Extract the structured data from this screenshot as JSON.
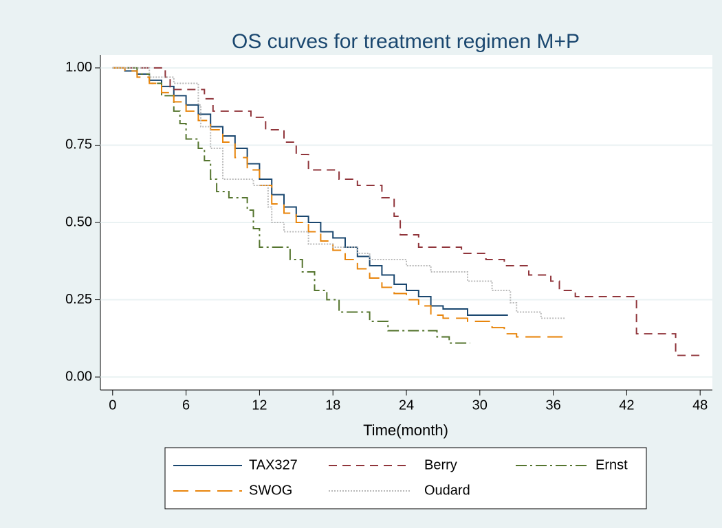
{
  "chart_data": {
    "type": "step",
    "title": "OS curves for treatment regimen M+P",
    "x_label": "Time(month)",
    "xlim": [
      -1,
      49
    ],
    "xticks": [
      0,
      6,
      12,
      18,
      24,
      30,
      36,
      42,
      48
    ],
    "ylim": [
      -0.042,
      1.042
    ],
    "yticks": [
      {
        "value": 0,
        "label": "0.00"
      },
      {
        "value": 0.25,
        "label": "0.25"
      },
      {
        "value": 0.5,
        "label": "0.50"
      },
      {
        "value": 0.75,
        "label": "0.75"
      },
      {
        "value": 1,
        "label": "1.00"
      }
    ],
    "grid": true,
    "series": [
      {
        "name": "TAX327",
        "color": "#1a476f",
        "dash": "none",
        "x": [
          0,
          1,
          2,
          3,
          4,
          5,
          6,
          7,
          8,
          9,
          10,
          11,
          12,
          13,
          14,
          15,
          16,
          17,
          18,
          19,
          20,
          21,
          22,
          23,
          24,
          25,
          26,
          27,
          29,
          32.3
        ],
        "values": [
          1.0,
          0.99,
          0.98,
          0.96,
          0.94,
          0.91,
          0.88,
          0.85,
          0.81,
          0.78,
          0.74,
          0.69,
          0.64,
          0.59,
          0.55,
          0.52,
          0.5,
          0.47,
          0.45,
          0.42,
          0.39,
          0.36,
          0.33,
          0.3,
          0.28,
          0.26,
          0.23,
          0.22,
          0.2,
          0.2
        ]
      },
      {
        "name": "Berry",
        "color": "#90353b",
        "dash": "12 8",
        "x": [
          0,
          4.3,
          4.7,
          7.5,
          8.2,
          11.3,
          12.5,
          14,
          15,
          16,
          18.5,
          20,
          22,
          23,
          23.5,
          25,
          28.5,
          30.5,
          32,
          34,
          35.8,
          36.5,
          37.8,
          42.8,
          46,
          48
        ],
        "values": [
          1.0,
          0.97,
          0.93,
          0.9,
          0.86,
          0.84,
          0.8,
          0.76,
          0.72,
          0.67,
          0.64,
          0.62,
          0.58,
          0.52,
          0.46,
          0.42,
          0.4,
          0.38,
          0.36,
          0.33,
          0.31,
          0.28,
          0.26,
          0.14,
          0.07,
          0.07
        ]
      },
      {
        "name": "Ernst",
        "color": "#55752f",
        "dash": "16 5 3 5",
        "x": [
          0,
          2,
          3,
          4,
          5,
          5.5,
          6,
          7,
          7.5,
          8,
          8.5,
          9.5,
          11,
          11.5,
          12,
          14.5,
          15.5,
          16.5,
          17.5,
          18.5,
          21,
          22.5,
          26.5,
          27.5,
          29.2
        ],
        "values": [
          1.0,
          0.98,
          0.95,
          0.91,
          0.86,
          0.82,
          0.77,
          0.74,
          0.7,
          0.64,
          0.6,
          0.58,
          0.54,
          0.48,
          0.42,
          0.38,
          0.34,
          0.28,
          0.25,
          0.21,
          0.18,
          0.15,
          0.13,
          0.11,
          0.11
        ]
      },
      {
        "name": "SWOG",
        "color": "#e8850c",
        "dash": "22 10",
        "x": [
          0,
          1,
          2,
          3,
          4,
          5,
          6,
          7,
          8,
          9,
          10,
          11,
          12,
          13,
          14,
          15,
          16,
          17,
          18,
          19,
          20,
          21,
          22,
          23,
          24,
          25,
          26,
          27,
          29,
          31,
          32,
          33,
          36.8
        ],
        "values": [
          1.0,
          0.99,
          0.97,
          0.95,
          0.92,
          0.89,
          0.86,
          0.83,
          0.8,
          0.76,
          0.71,
          0.67,
          0.62,
          0.56,
          0.53,
          0.5,
          0.47,
          0.44,
          0.41,
          0.38,
          0.35,
          0.32,
          0.29,
          0.27,
          0.25,
          0.23,
          0.2,
          0.19,
          0.18,
          0.16,
          0.14,
          0.13,
          0.13
        ]
      },
      {
        "name": "Oudard",
        "color": "#b8b8b8",
        "dash": "2 2",
        "x": [
          0,
          3,
          5,
          7,
          7.2,
          8,
          9,
          11.5,
          12.7,
          13,
          14,
          16,
          18,
          20,
          21,
          24,
          26,
          29,
          31,
          32.5,
          33,
          35,
          37
        ],
        "values": [
          1.0,
          0.97,
          0.95,
          0.88,
          0.81,
          0.74,
          0.64,
          0.62,
          0.55,
          0.5,
          0.47,
          0.43,
          0.42,
          0.4,
          0.38,
          0.36,
          0.34,
          0.31,
          0.28,
          0.24,
          0.21,
          0.19,
          0.19
        ]
      }
    ]
  }
}
